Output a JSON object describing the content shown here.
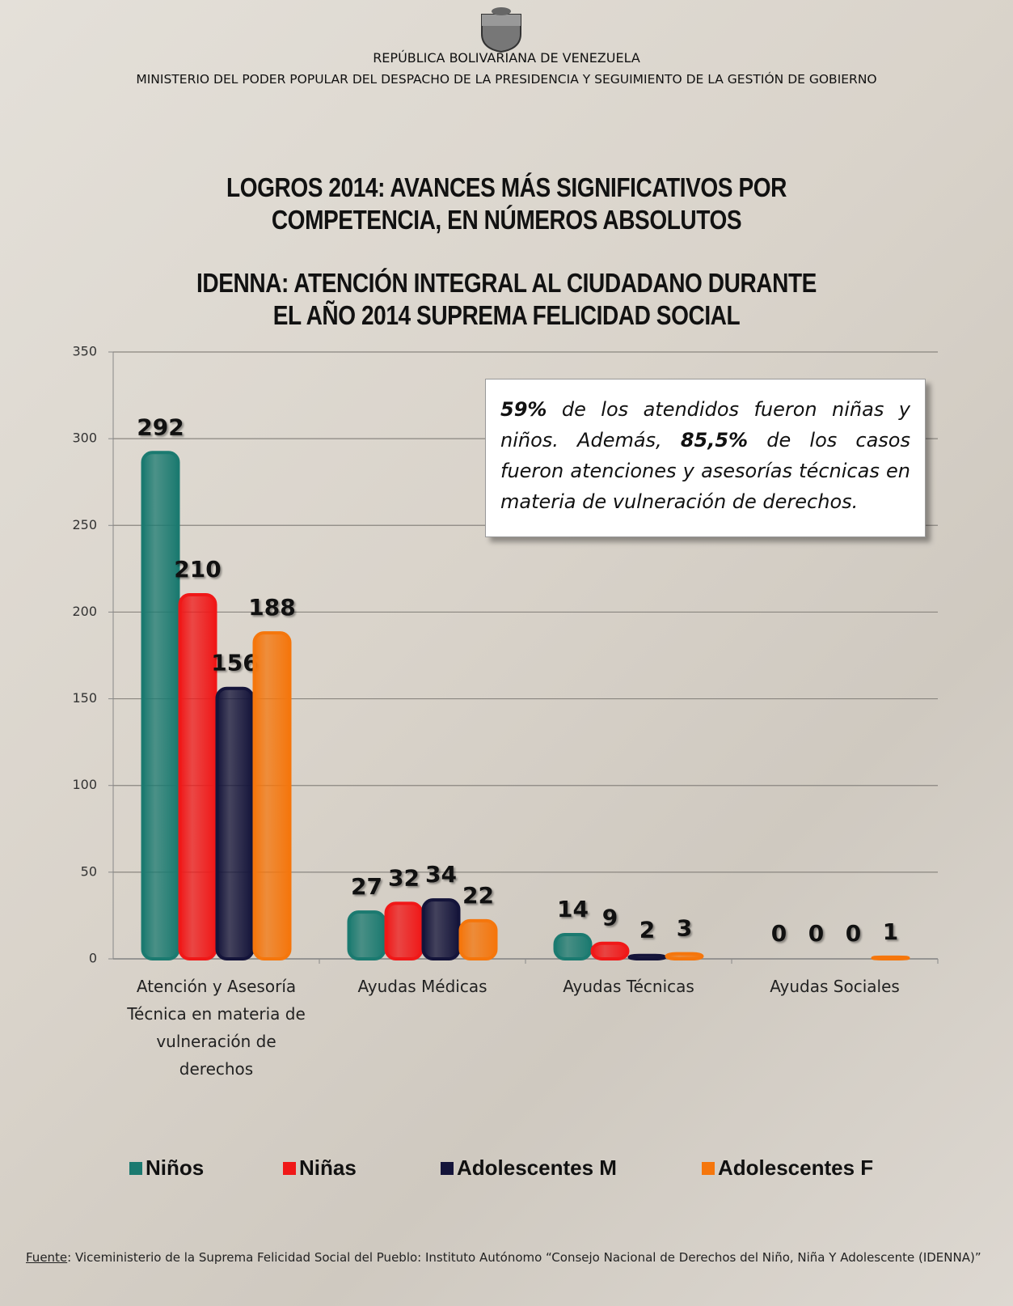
{
  "header": {
    "country": "REPÚBLICA BOLIVARIANA DE VENEZUELA",
    "ministry": "MINISTERIO  DEL PODER POPULAR DEL DESPACHO DE LA PRESIDENCIA  Y SEGUIMIENTO  DE LA GESTIÓN DE GOBIERNO"
  },
  "chart_data": {
    "type": "bar",
    "title": "LOGROS 2014: AVANCES MÁS SIGNIFICATIVOS POR COMPETENCIA, EN NÚMEROS ABSOLUTOS",
    "subtitle": "IDENNA: ATENCIÓN INTEGRAL AL CIUDADANO DURANTE EL AÑO 2014 SUPREMA FELICIDAD SOCIAL",
    "categories": [
      "Atención y Asesoría Técnica en materia de vulneración de derechos",
      "Ayudas Médicas",
      "Ayudas Técnicas",
      "Ayudas Sociales"
    ],
    "series": [
      {
        "name": "Niños",
        "color": "#1b7a70",
        "values": [
          292,
          27,
          14,
          0
        ]
      },
      {
        "name": "Niñas",
        "color": "#f01818",
        "values": [
          210,
          32,
          9,
          0
        ]
      },
      {
        "name": "Adolescentes M",
        "color": "#14143a",
        "values": [
          156,
          34,
          2,
          0
        ]
      },
      {
        "name": "Adolescentes F",
        "color": "#f5760c",
        "values": [
          188,
          22,
          3,
          1
        ]
      }
    ],
    "ylim": [
      0,
      350
    ],
    "yticks": [
      0,
      50,
      100,
      150,
      200,
      250,
      300,
      350
    ],
    "grid": true,
    "annotation": [
      {
        "text": "59%",
        "bold": true
      },
      {
        "text": " de los atendidos fueron niñas y niños. Además, ",
        "bold": false
      },
      {
        "text": "85,5%",
        "bold": true
      },
      {
        "text": " de los casos fueron atenciones y asesorías técnicas en materia de vulneración de derechos.",
        "bold": false
      }
    ],
    "legend_position": "bottom"
  },
  "source": {
    "label": "Fuente",
    "text": ": Viceministerio de la Suprema Felicidad Social del Pueblo: Instituto Autónomo “Consejo Nacional de Derechos del Niño, Niña Y Adolescente (IDENNA)”"
  }
}
